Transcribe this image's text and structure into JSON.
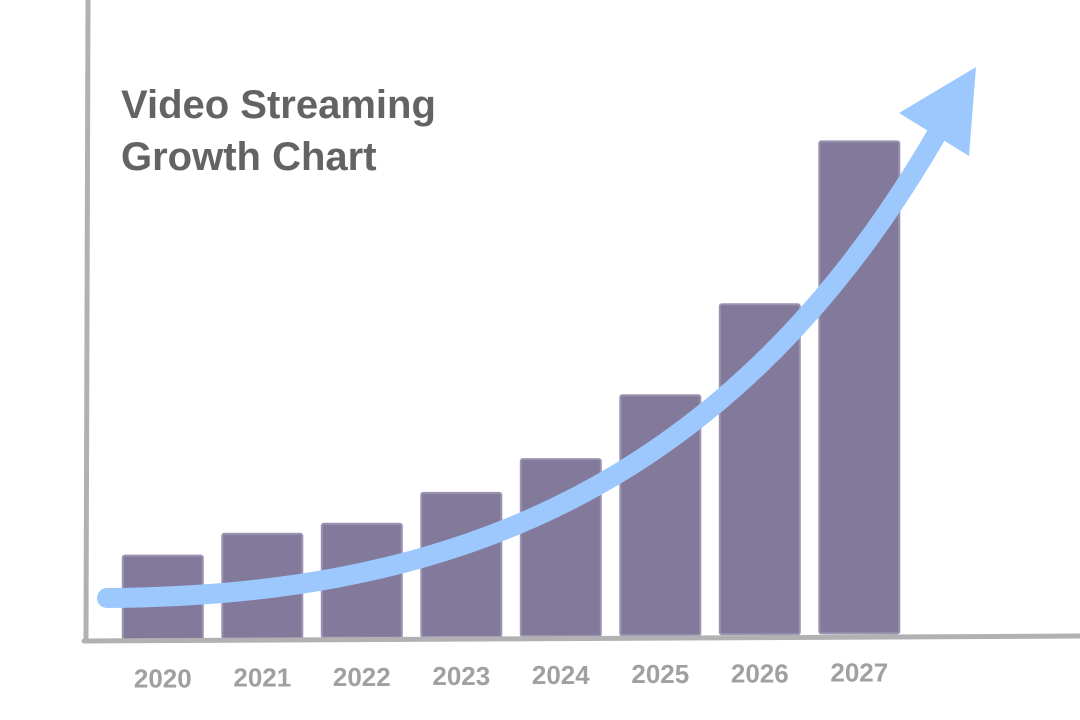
{
  "chart_data": {
    "type": "bar",
    "title_lines": [
      "Video Streaming",
      "Growth Chart"
    ],
    "categories": [
      "2020",
      "2021",
      "2022",
      "2023",
      "2024",
      "2025",
      "2026",
      "2027"
    ],
    "values": [
      14,
      17.5,
      19,
      24,
      29.5,
      40,
      55,
      82
    ],
    "ylim": [
      0,
      100
    ],
    "xlabel": "",
    "ylabel": "",
    "grid": false,
    "legend": "none",
    "trend_arrow": true
  },
  "colors": {
    "bar_fill": "#837a9b",
    "bar_edge": "#9b93b0",
    "axis": "#b1b1b4",
    "arrow": "#9cc8fd",
    "title": "#636366",
    "tick_label": "#a0a0a3"
  }
}
